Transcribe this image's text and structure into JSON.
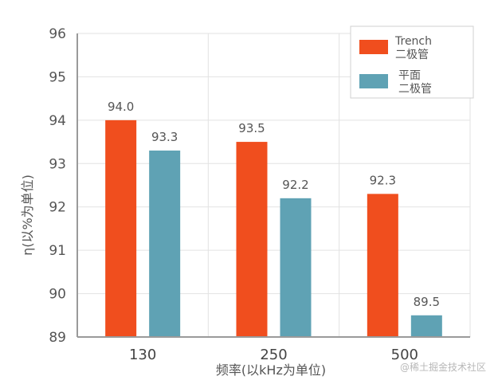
{
  "chart_data": {
    "type": "bar",
    "categories": [
      "130",
      "250",
      "500"
    ],
    "series": [
      {
        "name": "Trench 二极管",
        "name_lines": [
          "Trench",
          "二极管"
        ],
        "color": "#f04e1e",
        "values": [
          94.0,
          93.5,
          92.3
        ]
      },
      {
        "name": "平面 二极管",
        "name_lines": [
          "平面",
          "二极管"
        ],
        "color": "#5fa2b4",
        "values": [
          93.3,
          92.2,
          89.5
        ]
      }
    ],
    "data_labels": [
      [
        "94.0",
        "93.5",
        "92.3"
      ],
      [
        "93.3",
        "92.2",
        "89.5"
      ]
    ],
    "xlabel": "频率(以kHz为单位)",
    "ylabel": "η(以%为单位)",
    "ylim": [
      89,
      96
    ],
    "yticks": [
      "89",
      "90",
      "91",
      "92",
      "93",
      "94",
      "95",
      "96"
    ],
    "grid": "vertical and horizontal",
    "legend_position": "top-right"
  },
  "watermark": "@稀土掘金技术社区"
}
